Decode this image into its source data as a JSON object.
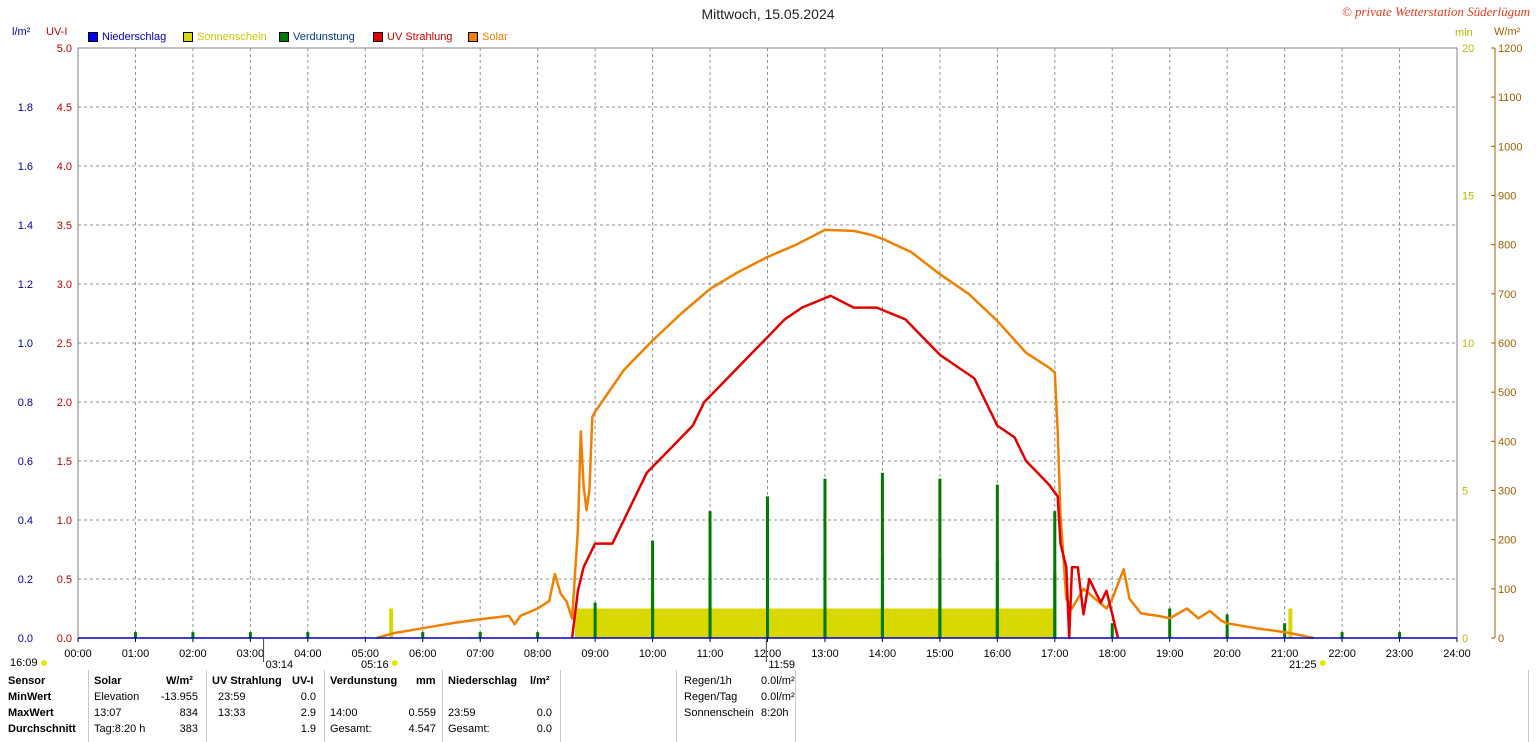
{
  "title": "Mittwoch, 15.05.2024",
  "copyright": "© private Wetterstation Süderlügum",
  "legend": [
    {
      "label": "Niederschlag",
      "color": "#0000ff",
      "text_color": "#0000c0"
    },
    {
      "label": "Sonnenschein",
      "color": "#d8d800",
      "text_color": "#c8c800"
    },
    {
      "label": "Verdunstung",
      "color": "#007a00",
      "text_color": "#003c80"
    },
    {
      "label": "UV Strahlung",
      "color": "#e00000",
      "text_color": "#d00000"
    },
    {
      "label": "Solar",
      "color": "#f08000",
      "text_color": "#f08000"
    }
  ],
  "axis_units": {
    "left1": "l/m²",
    "left2": "UV-I",
    "right1": "min",
    "right2": "W/m²"
  },
  "chart_data": {
    "type": "line",
    "x_ticks": [
      "00:00",
      "01:00",
      "02:00",
      "03:00",
      "04:00",
      "05:00",
      "06:00",
      "07:00",
      "08:00",
      "09:00",
      "10:00",
      "11:00",
      "12:00",
      "13:00",
      "14:00",
      "15:00",
      "16:00",
      "17:00",
      "18:00",
      "19:00",
      "20:00",
      "21:00",
      "22:00",
      "23:00",
      "24:00"
    ],
    "axes": {
      "precip": {
        "label": "l/m²",
        "range": [
          0,
          2.0
        ],
        "ticks": [
          "0.0",
          "0.2",
          "0.4",
          "0.6",
          "0.8",
          "1.0",
          "1.2",
          "1.4",
          "1.6",
          "1.8"
        ],
        "color": "#0000a0"
      },
      "uv": {
        "label": "UV-I",
        "range": [
          0,
          5.0
        ],
        "ticks": [
          "0.0",
          "0.5",
          "1.0",
          "1.5",
          "2.0",
          "2.5",
          "3.0",
          "3.5",
          "4.0",
          "4.5",
          "5.0"
        ],
        "color": "#c00000"
      },
      "sun_min": {
        "label": "min",
        "range": [
          0,
          20
        ],
        "ticks": [
          "0",
          "5",
          "10",
          "15",
          "20"
        ],
        "color": "#c8c800"
      },
      "solar": {
        "label": "W/m²",
        "range": [
          0,
          1200
        ],
        "ticks": [
          "0",
          "100",
          "200",
          "300",
          "400",
          "500",
          "600",
          "700",
          "800",
          "900",
          "1000",
          "1100",
          "1200"
        ],
        "color": "#a06000"
      }
    },
    "grid": true,
    "series": [
      {
        "name": "Solar",
        "axis": "solar",
        "color": "#f08000",
        "points": [
          [
            5.2,
            0
          ],
          [
            5.5,
            10
          ],
          [
            6.0,
            20
          ],
          [
            6.5,
            30
          ],
          [
            7.0,
            38
          ],
          [
            7.5,
            45
          ],
          [
            7.6,
            28
          ],
          [
            7.7,
            45
          ],
          [
            8.0,
            60
          ],
          [
            8.2,
            75
          ],
          [
            8.3,
            130
          ],
          [
            8.4,
            90
          ],
          [
            8.5,
            75
          ],
          [
            8.6,
            40
          ],
          [
            8.7,
            220
          ],
          [
            8.75,
            420
          ],
          [
            8.8,
            310
          ],
          [
            8.85,
            260
          ],
          [
            8.9,
            300
          ],
          [
            8.95,
            450
          ],
          [
            9.0,
            460
          ],
          [
            9.5,
            545
          ],
          [
            10.0,
            605
          ],
          [
            10.5,
            660
          ],
          [
            11.0,
            710
          ],
          [
            11.5,
            745
          ],
          [
            12.0,
            775
          ],
          [
            12.5,
            800
          ],
          [
            13.0,
            830
          ],
          [
            13.5,
            828
          ],
          [
            13.8,
            820
          ],
          [
            14.0,
            812
          ],
          [
            14.5,
            785
          ],
          [
            15.0,
            740
          ],
          [
            15.5,
            700
          ],
          [
            16.0,
            645
          ],
          [
            16.5,
            580
          ],
          [
            16.9,
            550
          ],
          [
            17.0,
            540
          ],
          [
            17.05,
            420
          ],
          [
            17.1,
            250
          ],
          [
            17.2,
            80
          ],
          [
            17.3,
            60
          ],
          [
            17.5,
            100
          ],
          [
            17.7,
            80
          ],
          [
            17.9,
            60
          ],
          [
            18.0,
            80
          ],
          [
            18.2,
            140
          ],
          [
            18.3,
            80
          ],
          [
            18.5,
            50
          ],
          [
            18.8,
            45
          ],
          [
            19.0,
            40
          ],
          [
            19.3,
            60
          ],
          [
            19.5,
            40
          ],
          [
            19.7,
            55
          ],
          [
            19.9,
            35
          ],
          [
            20.0,
            30
          ],
          [
            20.5,
            20
          ],
          [
            21.0,
            12
          ],
          [
            21.3,
            5
          ],
          [
            21.5,
            0
          ]
        ]
      },
      {
        "name": "UV Strahlung",
        "axis": "uv",
        "color": "#e00000",
        "points": [
          [
            8.6,
            0
          ],
          [
            8.7,
            0.4
          ],
          [
            8.8,
            0.6
          ],
          [
            9.0,
            0.8
          ],
          [
            9.3,
            0.8
          ],
          [
            9.5,
            1.0
          ],
          [
            9.7,
            1.2
          ],
          [
            9.9,
            1.4
          ],
          [
            10.1,
            1.5
          ],
          [
            10.3,
            1.6
          ],
          [
            10.5,
            1.7
          ],
          [
            10.7,
            1.8
          ],
          [
            10.9,
            2.0
          ],
          [
            11.1,
            2.1
          ],
          [
            11.3,
            2.2
          ],
          [
            11.5,
            2.3
          ],
          [
            11.7,
            2.4
          ],
          [
            11.9,
            2.5
          ],
          [
            12.1,
            2.6
          ],
          [
            12.3,
            2.7
          ],
          [
            12.6,
            2.8
          ],
          [
            13.1,
            2.9
          ],
          [
            13.5,
            2.8
          ],
          [
            13.9,
            2.8
          ],
          [
            14.4,
            2.7
          ],
          [
            14.6,
            2.6
          ],
          [
            14.8,
            2.5
          ],
          [
            15.0,
            2.4
          ],
          [
            15.3,
            2.3
          ],
          [
            15.6,
            2.2
          ],
          [
            15.8,
            2.0
          ],
          [
            16.0,
            1.8
          ],
          [
            16.3,
            1.7
          ],
          [
            16.5,
            1.5
          ],
          [
            16.7,
            1.4
          ],
          [
            16.9,
            1.3
          ],
          [
            17.05,
            1.2
          ],
          [
            17.1,
            0.8
          ],
          [
            17.2,
            0.6
          ],
          [
            17.25,
            0
          ],
          [
            17.3,
            0.6
          ],
          [
            17.4,
            0.6
          ],
          [
            17.5,
            0.2
          ],
          [
            17.6,
            0.5
          ],
          [
            17.7,
            0.4
          ],
          [
            17.8,
            0.3
          ],
          [
            17.9,
            0.4
          ],
          [
            18.0,
            0.2
          ],
          [
            18.1,
            0
          ]
        ]
      }
    ],
    "sunshine_bars": {
      "name": "Sonnenschein",
      "axis": "sun_min",
      "color": "#d8d800",
      "bars": [
        [
          5.45,
          1
        ],
        [
          8.7,
          1
        ],
        [
          8.8,
          1
        ],
        [
          9.0,
          1
        ],
        [
          9.1,
          1
        ],
        [
          9.2,
          1
        ],
        [
          10.0,
          1
        ],
        [
          11.0,
          1
        ],
        [
          12.0,
          1
        ],
        [
          13.0,
          1
        ],
        [
          14.0,
          1
        ],
        [
          15.0,
          1
        ],
        [
          16.0,
          1
        ],
        [
          16.95,
          1
        ],
        [
          21.1,
          1
        ]
      ],
      "block": {
        "from": 8.65,
        "to": 17.0,
        "value": 1
      }
    },
    "evaporation_bars": {
      "name": "Verdunstung",
      "axis": "precip",
      "color": "#007a00",
      "bars": [
        [
          1.0,
          0.02
        ],
        [
          2.0,
          0.02
        ],
        [
          3.0,
          0.02
        ],
        [
          4.0,
          0.02
        ],
        [
          6.0,
          0.02
        ],
        [
          7.0,
          0.02
        ],
        [
          8.0,
          0.02
        ],
        [
          9.0,
          0.12
        ],
        [
          10.0,
          0.33
        ],
        [
          10.0,
          0.16
        ],
        [
          11.0,
          0.43
        ],
        [
          11.0,
          0.22
        ],
        [
          12.0,
          0.48
        ],
        [
          12.0,
          0.24
        ],
        [
          13.0,
          0.54
        ],
        [
          13.0,
          0.27
        ],
        [
          14.0,
          0.56
        ],
        [
          14.0,
          0.28
        ],
        [
          15.0,
          0.54
        ],
        [
          15.0,
          0.27
        ],
        [
          16.0,
          0.52
        ],
        [
          16.0,
          0.26
        ],
        [
          17.0,
          0.43
        ],
        [
          17.0,
          0.22
        ],
        [
          18.0,
          0.05
        ],
        [
          19.0,
          0.1
        ],
        [
          20.0,
          0.08
        ],
        [
          21.0,
          0.05
        ],
        [
          22.0,
          0.02
        ],
        [
          23.0,
          0.02
        ]
      ]
    },
    "markers": [
      {
        "time_value": 3.23,
        "label": "03:14"
      },
      {
        "time_value": 11.98,
        "label": "11:59"
      }
    ],
    "sun_events": [
      {
        "time_value": 5.27,
        "label": "05:16",
        "position": "sunrise"
      },
      {
        "time_value": 21.42,
        "label": "21:25",
        "position": "sunset"
      }
    ],
    "left_corner_label": "16:09"
  },
  "summary_table": {
    "header": {
      "sensor": "Sensor",
      "solar": "Solar",
      "solar_unit": "W/m²",
      "uv": "UV Strahlung",
      "uv_unit": "UV-I",
      "evap": "Verdunstung",
      "evap_unit": "mm",
      "precip": "Niederschlag",
      "precip_unit": "l/m²"
    },
    "rows": [
      {
        "label": "MinWert",
        "solar_time": "Elevation",
        "solar_val": "-13.955",
        "uv_time": "23:59",
        "uv_val": "0.0",
        "evap_time": "",
        "evap_val": "",
        "precip_time": "",
        "precip_val": ""
      },
      {
        "label": "MaxWert",
        "solar_time": "13:07",
        "solar_val": "834",
        "uv_time": "13:33",
        "uv_val": "2.9",
        "evap_time": "14:00",
        "evap_val": "0.559",
        "precip_time": "23:59",
        "precip_val": "0.0"
      },
      {
        "label": "Durchschnitt",
        "solar_time": "Tag:8:20 h",
        "solar_val": "383",
        "uv_time": "",
        "uv_val": "1.9",
        "evap_time": "Gesamt:",
        "evap_val": "4.547",
        "precip_time": "Gesamt:",
        "precip_val": "0.0"
      }
    ],
    "right_info": [
      {
        "label": "Regen/1h",
        "value": "0.0l/m²"
      },
      {
        "label": "Regen/Tag",
        "value": "0.0l/m²"
      },
      {
        "label": "Sonnenschein",
        "value": "8:20h"
      }
    ]
  }
}
